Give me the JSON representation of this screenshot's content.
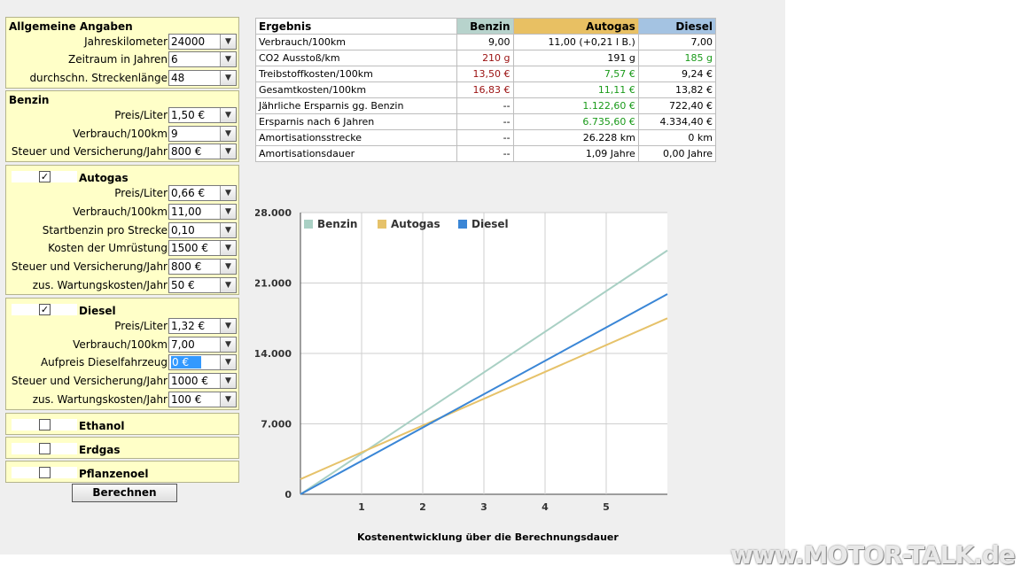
{
  "form": {
    "general": {
      "title": "Allgemeine Angaben",
      "fields": [
        {
          "label": "Jahreskilometer",
          "value": "24000"
        },
        {
          "label": "Zeitraum in Jahren",
          "value": "6"
        },
        {
          "label": "durchschn. Streckenlänge",
          "value": "48"
        }
      ]
    },
    "benzin": {
      "title": "Benzin",
      "fields": [
        {
          "label": "Preis/Liter",
          "value": "1,50 €"
        },
        {
          "label": "Verbrauch/100km",
          "value": "9"
        },
        {
          "label": "Steuer und Versicherung/Jahr",
          "value": "800 €"
        }
      ]
    },
    "autogas": {
      "title": "Autogas",
      "checked": true,
      "checkmark": "✓",
      "fields": [
        {
          "label": "Preis/Liter",
          "value": "0,66 €"
        },
        {
          "label": "Verbrauch/100km",
          "value": "11,00"
        },
        {
          "label": "Startbenzin pro Strecke",
          "value": "0,10"
        },
        {
          "label": "Kosten der Umrüstung",
          "value": "1500 €"
        },
        {
          "label": "Steuer und Versicherung/Jahr",
          "value": "800 €"
        },
        {
          "label": "zus. Wartungskosten/Jahr",
          "value": "50 €"
        }
      ]
    },
    "diesel": {
      "title": "Diesel",
      "checked": true,
      "checkmark": "✓",
      "fields": [
        {
          "label": "Preis/Liter",
          "value": "1,32 €"
        },
        {
          "label": "Verbrauch/100km",
          "value": "7,00"
        },
        {
          "label": "Aufpreis Dieselfahrzeug",
          "value": "0 €"
        },
        {
          "label": "Steuer und Versicherung/Jahr",
          "value": "1000 €"
        },
        {
          "label": "zus. Wartungskosten/Jahr",
          "value": "100 €"
        }
      ]
    },
    "ethanol": {
      "title": "Ethanol",
      "checked": false
    },
    "erdgas": {
      "title": "Erdgas",
      "checked": false
    },
    "pflanzenoel": {
      "title": "Pflanzenoel",
      "checked": false
    },
    "submit_label": "Berechnen",
    "dropdown_icon": "chevron-down-icon"
  },
  "results": {
    "headers": [
      "Ergebnis",
      "Benzin",
      "Autogas",
      "Diesel"
    ],
    "header_colors": [
      "#ffffff",
      "#b7d3cc",
      "#e8c063",
      "#a4c3e2"
    ],
    "rows": [
      {
        "label": "Verbrauch/100km",
        "benzin": "9,00",
        "autogas": "11,00 (+0,21 l B.)",
        "diesel": "7,00"
      },
      {
        "label": "CO2 Ausstoß/km",
        "benzin": "210 g",
        "autogas": "191 g",
        "diesel": "185 g"
      },
      {
        "label": "Treibstoffkosten/100km",
        "benzin": "13,50 €",
        "autogas": "7,57 €",
        "diesel": "9,24 €"
      },
      {
        "label": "Gesamtkosten/100km",
        "benzin": "16,83 €",
        "autogas": "11,11 €",
        "diesel": "13,82 €"
      },
      {
        "label": "Jährliche Ersparnis gg. Benzin",
        "benzin": "--",
        "autogas": "1.122,60 €",
        "diesel": "722,40 €"
      },
      {
        "label": "Ersparnis nach 6 Jahren",
        "benzin": "--",
        "autogas": "6.735,60 €",
        "diesel": "4.334,40 €"
      },
      {
        "label": "Amortisationsstrecke",
        "benzin": "--",
        "autogas": "26.228 km",
        "diesel": "0 km"
      },
      {
        "label": "Amortisationsdauer",
        "benzin": "--",
        "autogas": "1,09 Jahre",
        "diesel": "0,00 Jahre"
      }
    ],
    "value_colors": {
      "red": "#9a1010",
      "green": "#1a9a1a"
    }
  },
  "chart_data": {
    "type": "line",
    "title": "Kostenentwicklung über die Berechnungsdauer",
    "x_ticks": [
      "1",
      "2",
      "3",
      "4",
      "5"
    ],
    "y_ticks": [
      "0",
      "7.000",
      "14.000",
      "21.000",
      "28.000"
    ],
    "ylim": [
      0,
      28000
    ],
    "xlim": [
      0,
      6
    ],
    "grid": true,
    "legend_position": "top-left",
    "series": [
      {
        "name": "Benzin",
        "color": "#a9d0c4",
        "x": [
          0,
          6
        ],
        "y": [
          0,
          24235
        ]
      },
      {
        "name": "Autogas",
        "color": "#e6c26a",
        "x": [
          0,
          6
        ],
        "y": [
          1500,
          17498
        ]
      },
      {
        "name": "Diesel",
        "color": "#3a86d6",
        "x": [
          0,
          6
        ],
        "y": [
          0,
          19901
        ]
      }
    ]
  },
  "watermark": "www.MOTOR-TALK.de"
}
